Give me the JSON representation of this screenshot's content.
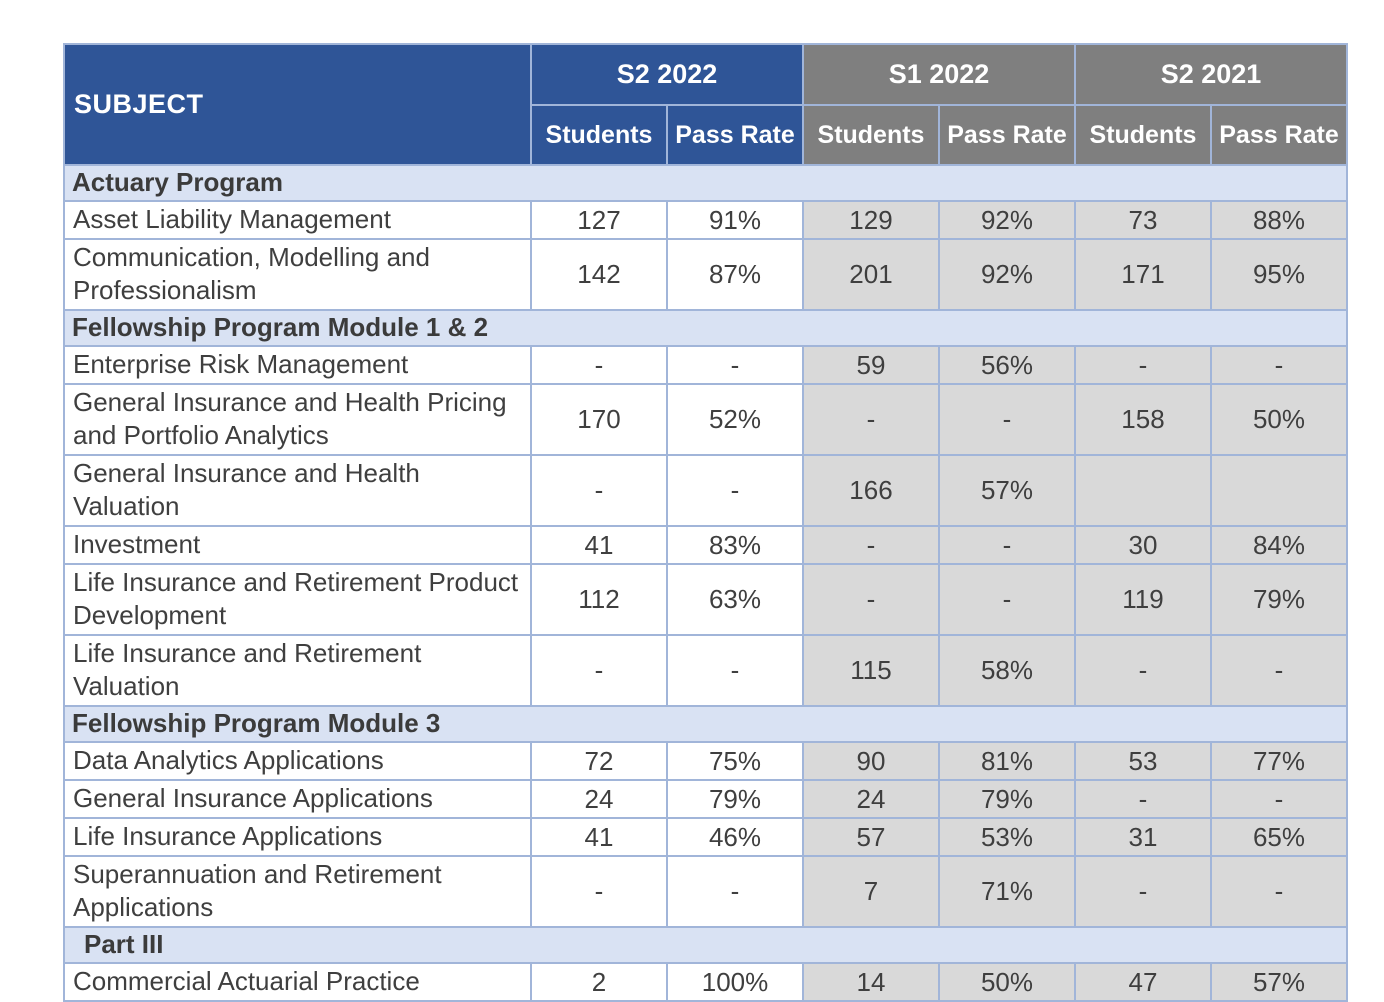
{
  "chart_data": {
    "type": "table",
    "subject_header": "SUBJECT",
    "column_groups": [
      "S2 2022",
      "S1 2022",
      "S2 2021"
    ],
    "sub_columns": [
      "Students",
      "Pass Rate"
    ],
    "sections": [
      {
        "title": "Actuary Program",
        "rows": [
          {
            "subject": "Asset Liability Management",
            "values": [
              "127",
              "91%",
              "129",
              "92%",
              "73",
              "88%"
            ]
          },
          {
            "subject": "Communication, Modelling and Professionalism",
            "values": [
              "142",
              "87%",
              "201",
              "92%",
              "171",
              "95%"
            ]
          }
        ]
      },
      {
        "title": "Fellowship Program Module 1 & 2",
        "rows": [
          {
            "subject": "Enterprise Risk Management",
            "values": [
              "-",
              "-",
              "59",
              "56%",
              "-",
              "-"
            ]
          },
          {
            "subject": "General Insurance and Health Pricing and Portfolio Analytics",
            "values": [
              "170",
              "52%",
              "-",
              "-",
              "158",
              "50%"
            ]
          },
          {
            "subject": "General Insurance and Health Valuation",
            "values": [
              "-",
              "-",
              "166",
              "57%",
              "",
              ""
            ]
          },
          {
            "subject": "Investment",
            "values": [
              "41",
              "83%",
              "-",
              "-",
              "30",
              "84%"
            ]
          },
          {
            "subject": "Life Insurance and Retirement Product Development",
            "values": [
              "112",
              "63%",
              "-",
              "-",
              "119",
              "79%"
            ]
          },
          {
            "subject": "Life Insurance and Retirement Valuation",
            "values": [
              "-",
              "-",
              "115",
              "58%",
              "-",
              "-"
            ]
          }
        ]
      },
      {
        "title": "Fellowship Program Module 3",
        "rows": [
          {
            "subject": "Data Analytics Applications",
            "values": [
              "72",
              "75%",
              "90",
              "81%",
              "53",
              "77%"
            ]
          },
          {
            "subject": "General Insurance Applications",
            "values": [
              "24",
              "79%",
              "24",
              "79%",
              "-",
              "-"
            ]
          },
          {
            "subject": "Life Insurance Applications",
            "values": [
              "41",
              "46%",
              "57",
              "53%",
              "31",
              "65%"
            ]
          },
          {
            "subject": "Superannuation and Retirement Applications",
            "values": [
              "-",
              "-",
              "7",
              "71%",
              "-",
              "-"
            ]
          }
        ]
      },
      {
        "title": "Part III",
        "rows": [
          {
            "subject": "Commercial Actuarial Practice",
            "values": [
              "2",
              "100%",
              "14",
              "50%",
              "47",
              "57%"
            ]
          }
        ]
      }
    ],
    "colors": {
      "header_blue": "#2F5597",
      "header_gray": "#7F7F7F",
      "section_band_blue": "#D9E2F3",
      "shaded_cell_gray": "#D9D9D9",
      "border_blue": "#A1B5D9",
      "header_text": "#FFFFFF",
      "body_text": "#3F3F3F"
    }
  }
}
